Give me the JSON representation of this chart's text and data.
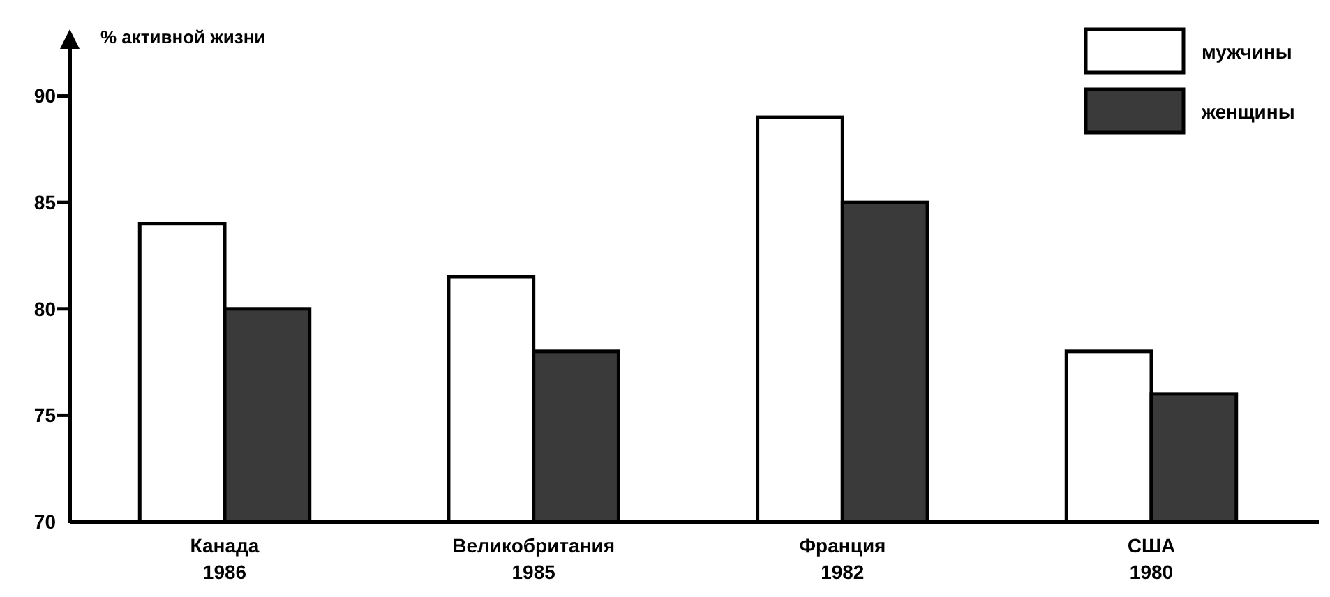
{
  "chart_data": {
    "type": "bar",
    "ylabel": "% активной жизни",
    "categories": [
      "Канада\n1986",
      "Великобритания\n1985",
      "Франция\n1982",
      "США\n1980"
    ],
    "series": [
      {
        "name": "мужчины",
        "color": "#ffffff",
        "values": [
          84,
          81.5,
          89,
          78
        ]
      },
      {
        "name": "женщины",
        "color": "#3a3a3a",
        "values": [
          80,
          78,
          85,
          76
        ]
      }
    ],
    "ylim": [
      70,
      93
    ],
    "yticks": [
      70,
      75,
      80,
      85,
      90
    ],
    "legend": "top right",
    "grid": false
  }
}
